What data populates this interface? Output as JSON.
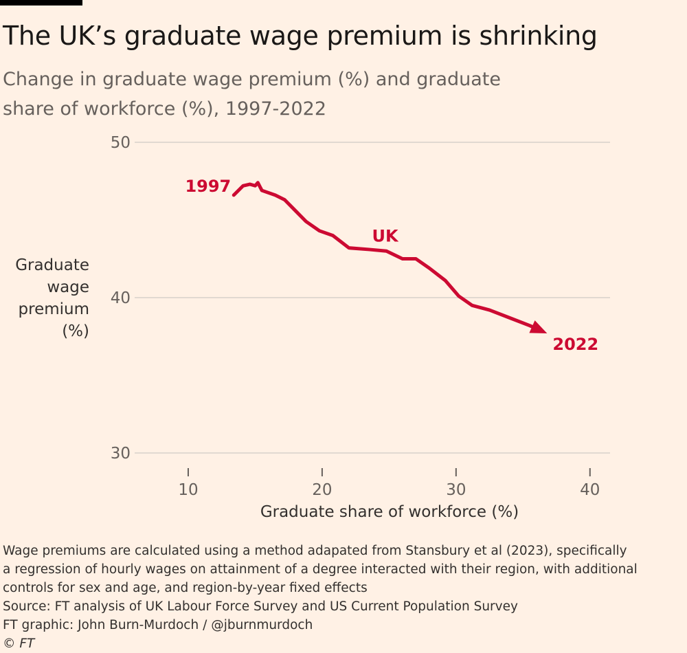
{
  "header": {
    "title": "The UK’s graduate wage premium is shrinking",
    "subtitle": "Change in graduate wage premium (%) and graduate share of workforce (%), 1997-2022"
  },
  "chart_data": {
    "type": "line",
    "title": "The UK’s graduate wage premium is shrinking",
    "subtitle": "Change in graduate wage premium (%) and graduate share of workforce (%), 1997-2022",
    "xlabel": "Graduate share of workforce (%)",
    "ylabel_lines": [
      "Graduate",
      "wage",
      "premium",
      "(%)"
    ],
    "xlim": [
      6,
      41.5
    ],
    "ylim": [
      30,
      50
    ],
    "x_ticks": [
      10,
      20,
      30,
      40
    ],
    "y_ticks": [
      30,
      40,
      50
    ],
    "grid": "horizontal",
    "series": [
      {
        "name": "UK",
        "color": "#cc0a32",
        "arrow_at_end": true,
        "start_label": "1997",
        "end_label": "2022",
        "x": [
          13.4,
          14.1,
          14.6,
          15.0,
          15.2,
          15.5,
          16.5,
          17.2,
          18.0,
          18.8,
          19.8,
          20.8,
          22.0,
          23.5,
          24.8,
          26.0,
          27.0,
          28.0,
          29.2,
          30.2,
          31.2,
          32.5,
          34.0,
          35.5,
          36.8
        ],
        "y": [
          46.6,
          47.2,
          47.3,
          47.2,
          47.4,
          46.9,
          46.6,
          46.3,
          45.6,
          44.9,
          44.3,
          44.0,
          43.2,
          43.1,
          43.0,
          42.5,
          42.5,
          41.9,
          41.1,
          40.1,
          39.5,
          39.2,
          38.7,
          38.2,
          37.7
        ]
      }
    ],
    "annotations": [
      {
        "text": "UK",
        "x": 24.7,
        "y": 43.6
      }
    ]
  },
  "footer": {
    "note_lines": [
      "Wage premiums are calculated using a method adapated from Stansbury et al (2023), specifically",
      "a regression of hourly wages on attainment of a degree interacted with their region, with additional",
      "controls for sex and age, and region-by-year fixed effects"
    ],
    "source": "Source: FT analysis of UK Labour Force Survey and US Current Population Survey",
    "credit": "FT graphic: John Burn-Murdoch / @jburnmurdoch",
    "copyright": "© FT"
  }
}
